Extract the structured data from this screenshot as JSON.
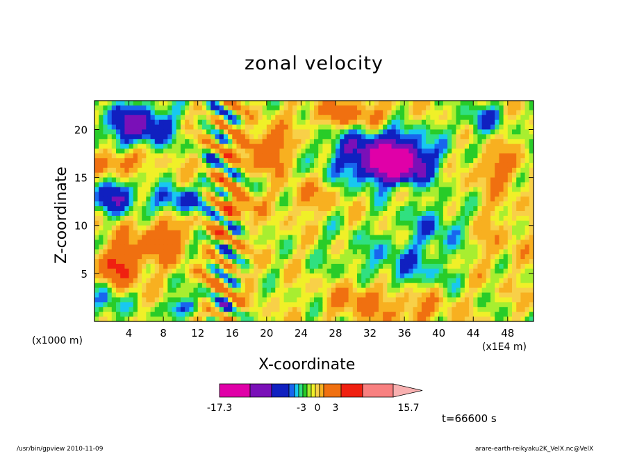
{
  "footer": {
    "left": "/usr/bin/gpview   2010-11-09",
    "right": "arare-earth-reikyaku2K_VelX.nc@VelX"
  },
  "time_label": "t=66600 s",
  "chart_data": {
    "type": "heatmap",
    "title": "zonal velocity",
    "xlabel": "X-coordinate",
    "ylabel": "Z-coordinate",
    "x_unit_left": "(x1000 m)",
    "x_unit_right": "(x1E4 m)",
    "xlim": [
      0,
      51
    ],
    "ylim": [
      0,
      23
    ],
    "x_ticks": [
      4,
      8,
      12,
      16,
      20,
      24,
      28,
      32,
      36,
      40,
      44,
      48
    ],
    "y_ticks": [
      5,
      10,
      15,
      20
    ],
    "colorbar": {
      "colors": [
        "#e000a8",
        "#7a10b8",
        "#1020c0",
        "#1866ee",
        "#18c8f0",
        "#30e080",
        "#28cc28",
        "#a8ee30",
        "#f0f028",
        "#f8d048",
        "#f8b020",
        "#f07010",
        "#f02010",
        "#f88080",
        "#f8b0b0"
      ],
      "tick_labels": [
        "-17.3",
        "-3",
        "0",
        "3",
        "15.7"
      ],
      "tick_values": [
        -17.3,
        -3,
        0,
        3,
        15.7
      ],
      "extend": "max"
    },
    "features": [
      {
        "x": 35,
        "y": 16.5,
        "value": -15,
        "sx": 3.2,
        "sy": 1.8
      },
      {
        "x": 33,
        "y": 17.5,
        "value": -9,
        "sx": 6.0,
        "sy": 3.0
      },
      {
        "x": 5,
        "y": 20.5,
        "value": -10,
        "sx": 4.0,
        "sy": 2.2
      },
      {
        "x": 2.5,
        "y": 13,
        "value": -8,
        "sx": 2.5,
        "sy": 1.8
      },
      {
        "x": 9.5,
        "y": 12.5,
        "value": -7,
        "sx": 2.8,
        "sy": 1.4
      },
      {
        "x": 3,
        "y": 16.5,
        "value": 6,
        "sx": 2.5,
        "sy": 1.3
      },
      {
        "x": 3,
        "y": 6,
        "value": 8,
        "sx": 2.5,
        "sy": 2.5
      },
      {
        "x": 8,
        "y": 8.5,
        "value": 7,
        "sx": 2.5,
        "sy": 2.2
      },
      {
        "x": 20,
        "y": 18,
        "value": 7,
        "sx": 3.0,
        "sy": 2.0
      },
      {
        "x": 30,
        "y": 21.5,
        "value": 6,
        "sx": 5.0,
        "sy": 1.5
      },
      {
        "x": 47,
        "y": 16,
        "value": 5,
        "sx": 2.5,
        "sy": 2.0
      },
      {
        "x": 36,
        "y": 5.5,
        "value": -4,
        "sx": 6.0,
        "sy": 3.0
      },
      {
        "x": 40,
        "y": 10,
        "value": -4,
        "sx": 4.0,
        "sy": 2.5
      },
      {
        "x": 46,
        "y": 9,
        "value": 2,
        "sx": 4.0,
        "sy": 4.0
      },
      {
        "x": 31,
        "y": 2.5,
        "value": 5,
        "sx": 3.0,
        "sy": 2.0
      },
      {
        "x": 37,
        "y": 1.5,
        "value": 4,
        "sx": 4.0,
        "sy": 2.0
      },
      {
        "x": 17,
        "y": 12,
        "value": 6,
        "sx": 1.8,
        "sy": 1.2
      },
      {
        "x": 1.5,
        "y": 2,
        "value": -5,
        "sx": 2.0,
        "sy": 2.0
      },
      {
        "x": 10,
        "y": 1.5,
        "value": -6,
        "sx": 2.0,
        "sy": 1.0
      },
      {
        "x": 25,
        "y": 13,
        "value": 3,
        "sx": 3.0,
        "sy": 2.0
      },
      {
        "x": 29,
        "y": 8,
        "value": -1,
        "sx": 4.0,
        "sy": 3.0
      },
      {
        "x": 45,
        "y": 21,
        "value": -5,
        "sx": 2.5,
        "sy": 1.5
      }
    ]
  }
}
